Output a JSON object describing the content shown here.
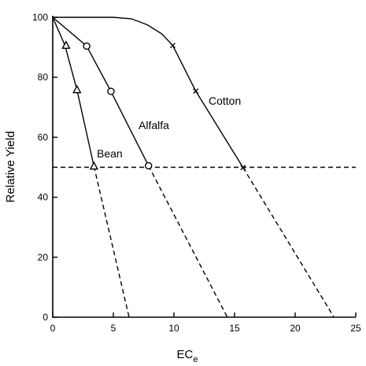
{
  "chart_data": {
    "type": "line",
    "xlabel": "EC",
    "xlabel_sub": "e",
    "ylabel": "Relative Yield",
    "xlim": [
      0,
      25
    ],
    "ylim": [
      0,
      100
    ],
    "x_ticks": [
      0,
      5,
      10,
      15,
      20,
      25
    ],
    "x_tick_labels": [
      "0",
      "5",
      "10",
      "15",
      "20",
      "25"
    ],
    "y_ticks": [
      0,
      20,
      40,
      60,
      80,
      100
    ],
    "y_tick_labels": [
      "0",
      "20",
      "40",
      "60",
      "80",
      "100"
    ],
    "reference_line": {
      "y": 50,
      "style": "dashed"
    },
    "series": [
      {
        "name": "Bean",
        "marker": "triangle",
        "curve": [
          [
            0,
            100
          ],
          [
            1.0,
            90.7
          ],
          [
            2.0,
            75.8
          ],
          [
            3.4,
            50.3
          ],
          [
            6.3,
            0
          ]
        ],
        "dashed_from_x": 3.4,
        "points": [
          [
            1.1,
            90.6
          ],
          [
            2.0,
            75.8
          ],
          [
            3.4,
            50.3
          ]
        ]
      },
      {
        "name": "Alfalfa",
        "label": "Alfalfa",
        "marker": "circle",
        "curve": [
          [
            0,
            100
          ],
          [
            2.8,
            90.4
          ],
          [
            4.8,
            75.3
          ],
          [
            7.9,
            50.5
          ],
          [
            14.4,
            0
          ]
        ],
        "dashed_from_x": 7.9,
        "points": [
          [
            2.8,
            90.4
          ],
          [
            4.8,
            75.3
          ],
          [
            7.9,
            50.5
          ]
        ]
      },
      {
        "name": "Cotton",
        "marker": "x",
        "curve": [
          [
            0,
            100
          ],
          [
            5,
            100
          ],
          [
            6.5,
            99.5
          ],
          [
            7.8,
            97.5
          ],
          [
            9.0,
            94.5
          ],
          [
            9.9,
            90.6
          ],
          [
            11.8,
            75.4
          ],
          [
            15.7,
            49.9
          ],
          [
            23.2,
            0
          ]
        ],
        "dashed_from_x": 15.7,
        "points": [
          [
            9.9,
            90.6
          ],
          [
            11.8,
            75.4
          ],
          [
            15.7,
            49.9
          ]
        ]
      }
    ]
  }
}
